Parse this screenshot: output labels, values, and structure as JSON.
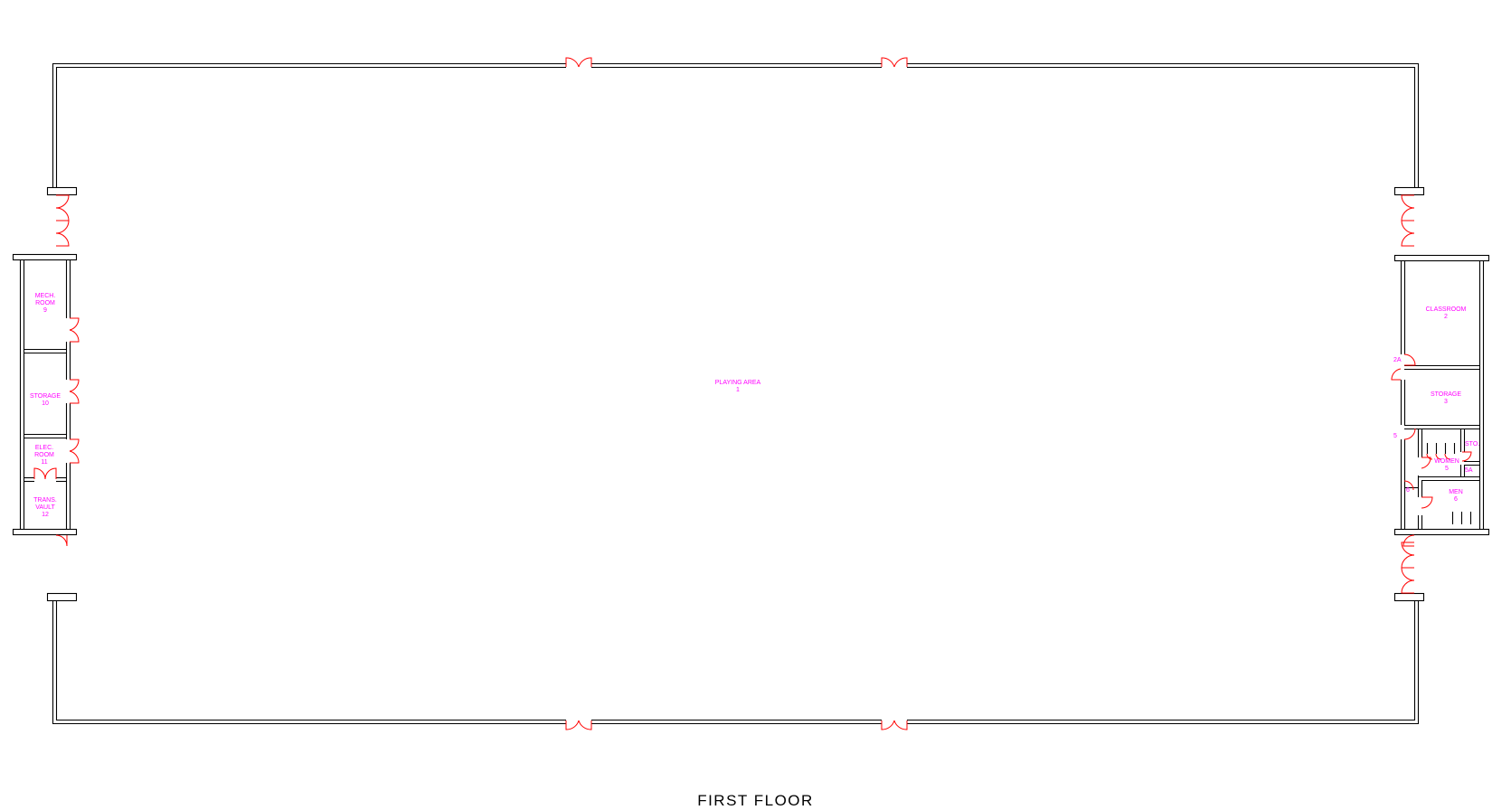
{
  "drawing": {
    "title": "FIRST FLOOR",
    "colors": {
      "walls": "#000000",
      "doors": "#ff0000",
      "labels": "#ff00ff",
      "background": "#ffffff"
    }
  },
  "rooms": [
    {
      "key": "playing",
      "name": "PLAYING AREA",
      "number": "1"
    },
    {
      "key": "classroom",
      "name": "CLASSROOM",
      "number": "2"
    },
    {
      "key": "storage3",
      "name": "STORAGE",
      "number": "3"
    },
    {
      "key": "women",
      "name": "WOMEN",
      "number": "5"
    },
    {
      "key": "men",
      "name": "MEN",
      "number": "6"
    },
    {
      "key": "mech",
      "name": "MECH. ROOM",
      "number": "9"
    },
    {
      "key": "storage10",
      "name": "STORAGE",
      "number": "10"
    },
    {
      "key": "elec",
      "name": "ELEC. ROOM",
      "number": "11"
    },
    {
      "key": "trans",
      "name": "TRANS. VAULT",
      "number": "12"
    }
  ],
  "tags": {
    "door_2a": "2A",
    "door_5": "5",
    "sto": "STO.",
    "sto_5a": "5A",
    "door_6": "6"
  },
  "labels": {
    "playing_name": "PLAYING AREA",
    "playing_num": "1",
    "classroom_name": "CLASSROOM",
    "classroom_num": "2",
    "storage3_name": "STORAGE",
    "storage3_num": "3",
    "women_name": "WOMEN",
    "women_num": "5",
    "men_name": "MEN",
    "men_num": "6",
    "mech_line1": "MECH.",
    "mech_line2": "ROOM",
    "mech_num": "9",
    "storage10_name": "STORAGE",
    "storage10_num": "10",
    "elec_line1": "ELEC.",
    "elec_line2": "ROOM",
    "elec_num": "11",
    "trans_line1": "TRANS.",
    "trans_line2": "VAULT",
    "trans_num": "12"
  }
}
